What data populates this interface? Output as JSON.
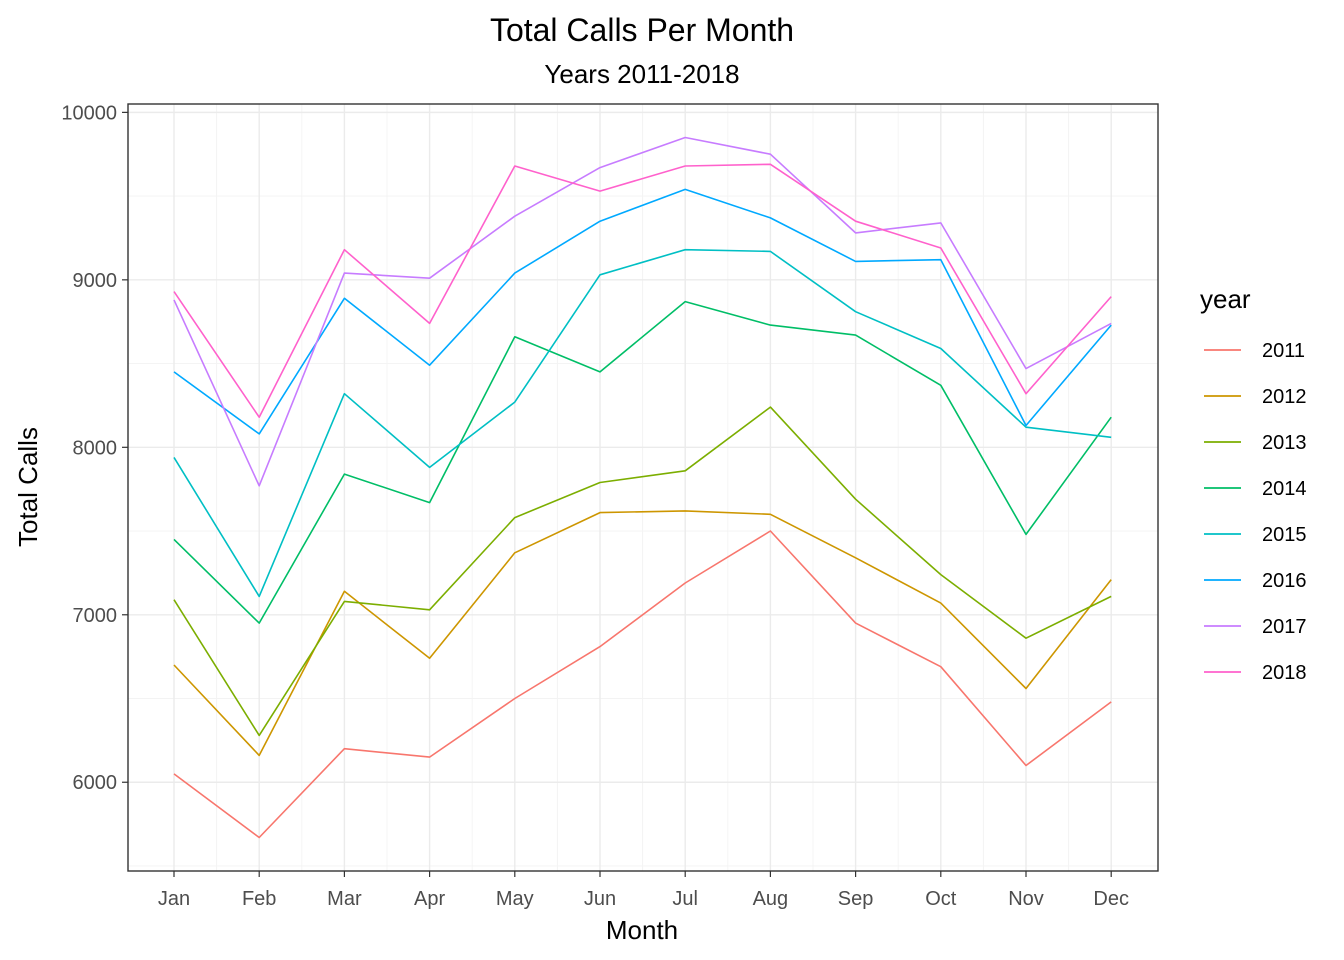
{
  "chart_data": {
    "type": "line",
    "title": "Total Calls Per Month",
    "subtitle": "Years 2011-2018",
    "xlabel": "Month",
    "ylabel": "Total Calls",
    "categories": [
      "Jan",
      "Feb",
      "Mar",
      "Apr",
      "May",
      "Jun",
      "Jul",
      "Aug",
      "Sep",
      "Oct",
      "Nov",
      "Dec"
    ],
    "ylim": [
      5470,
      10050
    ],
    "yticks": [
      6000,
      7000,
      8000,
      9000,
      10000
    ],
    "grid": true,
    "legend": {
      "title": "year",
      "position": "right"
    },
    "series": [
      {
        "name": "2011",
        "color": "#F8766D",
        "values": [
          6050,
          5670,
          6200,
          6150,
          6500,
          6810,
          7190,
          7500,
          6950,
          6690,
          6100,
          6480
        ]
      },
      {
        "name": "2012",
        "color": "#CD9600",
        "values": [
          6700,
          6160,
          7140,
          6740,
          7370,
          7610,
          7620,
          7600,
          7340,
          7070,
          6560,
          7210
        ]
      },
      {
        "name": "2013",
        "color": "#7CAE00",
        "values": [
          7090,
          6280,
          7080,
          7030,
          7580,
          7790,
          7860,
          8240,
          7690,
          7240,
          6860,
          7110
        ]
      },
      {
        "name": "2014",
        "color": "#00BE67",
        "values": [
          7450,
          6950,
          7840,
          7670,
          8660,
          8450,
          8870,
          8730,
          8670,
          8370,
          7480,
          8180
        ]
      },
      {
        "name": "2015",
        "color": "#00BFC4",
        "values": [
          7940,
          7110,
          8320,
          7880,
          8270,
          9030,
          9180,
          9170,
          8810,
          8590,
          8120,
          8060
        ]
      },
      {
        "name": "2016",
        "color": "#00A9FF",
        "values": [
          8450,
          8080,
          8890,
          8490,
          9040,
          9350,
          9540,
          9370,
          9110,
          9120,
          8130,
          8730
        ]
      },
      {
        "name": "2017",
        "color": "#C77CFF",
        "values": [
          8880,
          7770,
          9040,
          9010,
          9380,
          9670,
          9850,
          9750,
          9280,
          9340,
          8470,
          8740
        ]
      },
      {
        "name": "2018",
        "color": "#FF61CC",
        "values": [
          8930,
          8180,
          9180,
          8740,
          9680,
          9530,
          9680,
          9690,
          9350,
          9190,
          8320,
          8900
        ]
      }
    ]
  }
}
